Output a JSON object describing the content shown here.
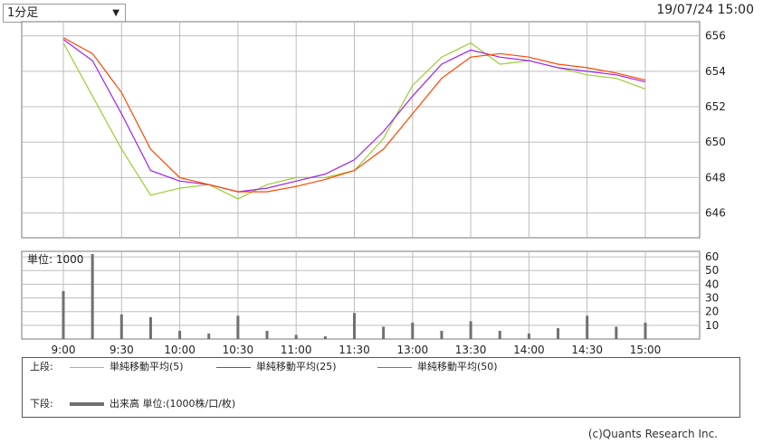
{
  "header": {
    "period_select": "1分足",
    "timestamp": "19/07/24 15:00"
  },
  "upper_panel": {
    "y_ticks": [
      646,
      648,
      650,
      652,
      654,
      656
    ],
    "ylim": [
      644.6,
      656.8
    ]
  },
  "lower_panel": {
    "unit_label": "単位: 1000",
    "y_ticks": [
      10,
      20,
      30,
      40,
      50,
      60
    ],
    "ylim": [
      0,
      64
    ]
  },
  "x_axis": {
    "tick_labels": [
      "9:00",
      "9:30",
      "10:00",
      "10:30",
      "11:00",
      "11:30",
      "13:00",
      "13:30",
      "14:00",
      "14:30",
      "15:00"
    ]
  },
  "legend": {
    "upper_label": "上段:",
    "lower_label": "下段:",
    "ma5": "単純移動平均(5)",
    "ma25": "単純移動平均(25)",
    "ma50": "単純移動平均(50)",
    "volume": "出来高 単位:(1000株/口/枚)"
  },
  "copyright": "(c)Quants Research Inc.",
  "colors": {
    "up_candle": "#e8004c",
    "down_candle": "#0a2fa6",
    "ma5": "#9acd32",
    "ma25": "#a020f0",
    "ma50": "#ff4500",
    "volume": "#707070",
    "grid": "#bdbdbd"
  },
  "chart_data": [
    {
      "type": "line",
      "panel": "price",
      "x": [
        "9:00",
        "9:15",
        "9:30",
        "9:45",
        "10:00",
        "10:15",
        "10:30",
        "10:45",
        "11:00",
        "11:15",
        "11:30",
        "11:45",
        "13:00",
        "13:15",
        "13:30",
        "13:45",
        "14:00",
        "14:15",
        "14:30",
        "14:45",
        "15:00"
      ],
      "series": [
        {
          "name": "単純移動平均(5)",
          "values": [
            655.6,
            652.6,
            649.6,
            647.0,
            647.4,
            647.6,
            646.8,
            647.6,
            648.0,
            648.0,
            648.4,
            650.2,
            653.2,
            654.8,
            655.6,
            654.4,
            654.6,
            654.2,
            653.8,
            653.6,
            653.0
          ]
        },
        {
          "name": "単純移動平均(25)",
          "values": [
            655.8,
            654.6,
            651.6,
            648.4,
            647.8,
            647.6,
            647.2,
            647.4,
            647.8,
            648.2,
            649.0,
            650.6,
            652.6,
            654.4,
            655.2,
            654.8,
            654.6,
            654.2,
            654.0,
            653.8,
            653.4
          ]
        },
        {
          "name": "単純移動平均(50)",
          "values": [
            655.9,
            655.0,
            652.8,
            649.6,
            648.0,
            647.6,
            647.2,
            647.2,
            647.5,
            647.9,
            648.4,
            649.6,
            651.6,
            653.6,
            654.8,
            655.0,
            654.8,
            654.4,
            654.2,
            653.9,
            653.5
          ]
        }
      ]
    },
    {
      "type": "bar",
      "panel": "volume",
      "x": [
        "9:00",
        "9:15",
        "9:30",
        "9:45",
        "10:00",
        "10:15",
        "10:30",
        "10:45",
        "11:00",
        "11:15",
        "11:30",
        "11:45",
        "13:00",
        "13:15",
        "13:30",
        "13:45",
        "14:00",
        "14:15",
        "14:30",
        "14:45",
        "15:00"
      ],
      "values": [
        35,
        62,
        18,
        16,
        6,
        4,
        17,
        6,
        3,
        2,
        19,
        9,
        12,
        6,
        13,
        6,
        4,
        8,
        17,
        9,
        12
      ]
    }
  ]
}
